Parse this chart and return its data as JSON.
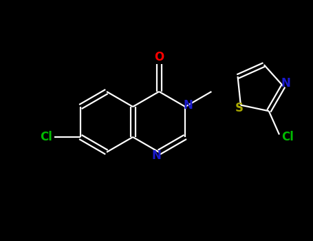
{
  "background_color": "#000000",
  "bond_color": "#ffffff",
  "atom_colors": {
    "O": "#ff0000",
    "N": "#1a1acd",
    "S": "#aaaa00",
    "Cl": "#00bb00",
    "C": "#ffffff"
  },
  "figsize": [
    4.55,
    3.5
  ],
  "dpi": 100,
  "xlim": [
    0,
    455
  ],
  "ylim": [
    0,
    350
  ],
  "lw": 1.6
}
